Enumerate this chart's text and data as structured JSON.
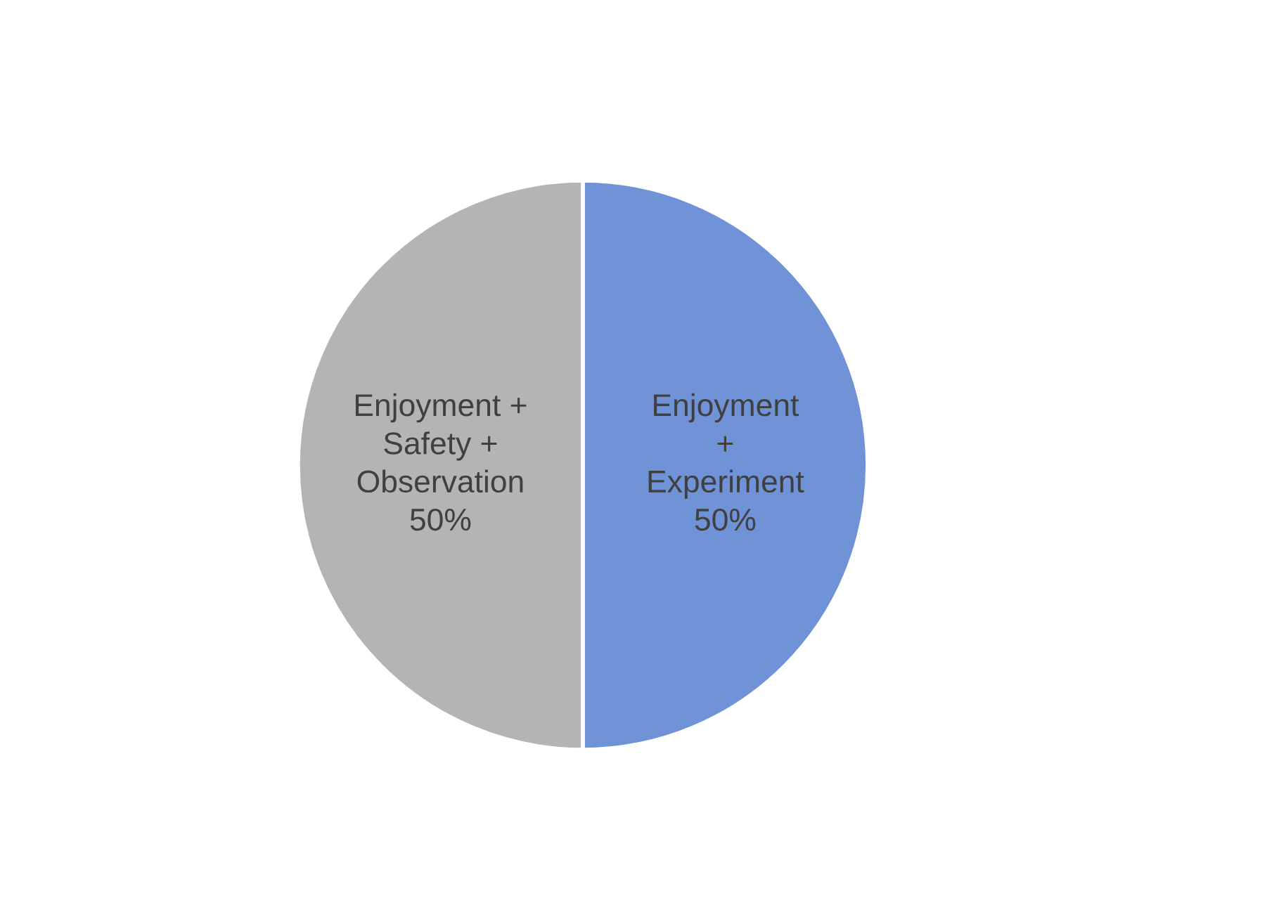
{
  "chart_data": {
    "type": "pie",
    "categories": [
      "Enjoyment\n+\nExperiment",
      "Enjoyment +\nSafety +\nObservation"
    ],
    "values": [
      50,
      50
    ],
    "value_labels": [
      "50%",
      "50%"
    ],
    "colors": [
      "#6f93d6",
      "#b4b4b4"
    ],
    "legend": false
  }
}
